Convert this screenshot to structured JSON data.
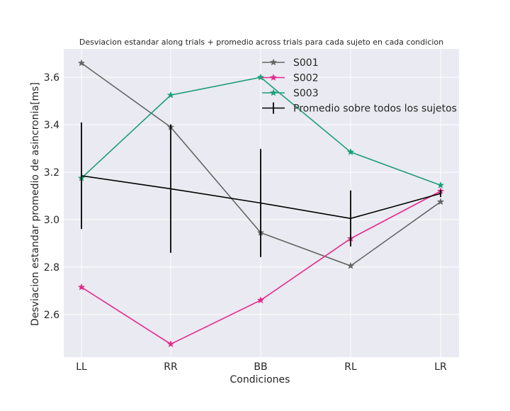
{
  "chart_data": {
    "type": "line",
    "title": "Desviacion estandar along trials + promedio across trials para cada sujeto en cada condicion",
    "xlabel": "Condiciones",
    "ylabel": "Desviacion estandar promedio de asincronia[ms]",
    "categories": [
      "LL",
      "RR",
      "BB",
      "RL",
      "LR"
    ],
    "ylim": [
      2.42,
      3.72
    ],
    "yticks": [
      "2.6",
      "2.8",
      "3.0",
      "3.2",
      "3.4",
      "3.6"
    ],
    "grid": true,
    "legend_position": "top-right",
    "series": [
      {
        "name": "S001",
        "color": "#666666",
        "marker": "star",
        "values": [
          3.66,
          3.39,
          2.945,
          2.805,
          3.075
        ]
      },
      {
        "name": "S002",
        "color": "#e7298a",
        "marker": "star",
        "values": [
          2.715,
          2.475,
          2.66,
          2.92,
          3.12
        ]
      },
      {
        "name": "S003",
        "color": "#1b9e77",
        "marker": "star",
        "values": [
          3.175,
          3.525,
          3.6,
          3.285,
          3.145
        ]
      }
    ],
    "mean_series": {
      "name": "Promedio sobre todos los sujetos",
      "color": "#000000",
      "values": [
        3.185,
        3.13,
        3.07,
        3.005,
        3.11
      ],
      "errors": [
        0.225,
        0.27,
        0.228,
        0.118,
        0.015
      ]
    }
  },
  "colors": {
    "plot_background": "#eaeaf2",
    "grid": "#ffffff"
  }
}
